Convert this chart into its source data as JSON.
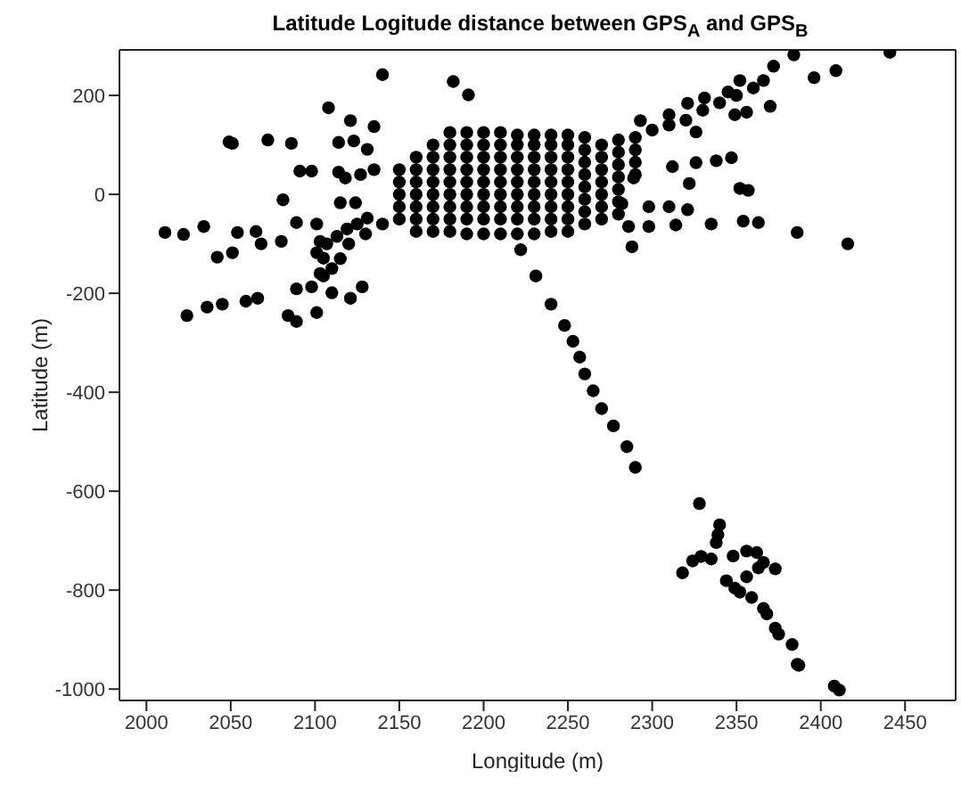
{
  "chart_data": {
    "type": "scatter",
    "title": "Latitude Logitude distance between GPS$_{A}$ and GPS$_{B}$",
    "xlabel": "Longitude (m)",
    "ylabel": "Latitude (m)",
    "xlim": [
      1984,
      2480
    ],
    "ylim": [
      -1023,
      292
    ],
    "xticks": [
      2000,
      2050,
      2100,
      2150,
      2200,
      2250,
      2300,
      2350,
      2400,
      2450
    ],
    "yticks": [
      -1000,
      -800,
      -600,
      -400,
      -200,
      0,
      200
    ],
    "grid": false,
    "legend": false,
    "marker": "circle",
    "series": [
      {
        "color": "#000000",
        "x": [
          2011,
          2022,
          2034,
          2049,
          2051,
          2072,
          2086,
          2054,
          2065,
          2042,
          2051,
          2068,
          2080,
          2024,
          2036,
          2045,
          2059,
          2066,
          2081,
          2089,
          2084,
          2089,
          2101,
          2089,
          2098,
          2091,
          2098,
          2101,
          2103,
          2105,
          2103,
          2101,
          2107,
          2113,
          2119,
          2125,
          2131,
          2110,
          2121,
          2128,
          2108,
          2121,
          2135,
          2140,
          2182,
          2191,
          2114,
          2123,
          2114,
          2118,
          2115,
          2124,
          2127,
          2135,
          2131,
          2140,
          2130,
          2120,
          2115,
          2110,
          2105,
          2150,
          2150,
          2150,
          2150,
          2150,
          2160,
          2160,
          2160,
          2160,
          2160,
          2160,
          2160,
          2170,
          2170,
          2170,
          2170,
          2170,
          2170,
          2170,
          2170,
          2180,
          2180,
          2180,
          2180,
          2180,
          2180,
          2180,
          2180,
          2180,
          2190,
          2190,
          2190,
          2190,
          2190,
          2190,
          2190,
          2190,
          2190,
          2200,
          2200,
          2200,
          2200,
          2200,
          2200,
          2200,
          2200,
          2200,
          2210,
          2210,
          2210,
          2210,
          2210,
          2210,
          2210,
          2210,
          2210,
          2220,
          2220,
          2220,
          2220,
          2220,
          2220,
          2220,
          2220,
          2220,
          2230,
          2230,
          2230,
          2230,
          2230,
          2230,
          2230,
          2230,
          2230,
          2240,
          2240,
          2240,
          2240,
          2240,
          2240,
          2240,
          2240,
          2240,
          2250,
          2250,
          2250,
          2250,
          2250,
          2250,
          2250,
          2250,
          2250,
          2260,
          2260,
          2260,
          2260,
          2260,
          2260,
          2260,
          2260,
          2270,
          2270,
          2270,
          2270,
          2270,
          2270,
          2270,
          2280,
          2280,
          2280,
          2280,
          2280,
          2280,
          2280,
          2290,
          2290,
          2290,
          2290,
          2300,
          2310,
          2320,
          2330,
          2340,
          2350,
          2360,
          2372,
          2384,
          2396,
          2409,
          2441,
          2352,
          2366,
          2321,
          2331,
          2345,
          2349,
          2356,
          2370,
          2293,
          2310,
          2326,
          2312,
          2326,
          2338,
          2347,
          2352,
          2357,
          2322,
          2289,
          2282,
          2298,
          2310,
          2321,
          2314,
          2335,
          2354,
          2363,
          2386,
          2416,
          2298,
          2286,
          2288,
          2222,
          2231,
          2240,
          2248,
          2253,
          2257,
          2260,
          2265,
          2270,
          2277,
          2285,
          2290,
          2328,
          2340,
          2339,
          2338,
          2318,
          2324,
          2329,
          2335,
          2348,
          2356,
          2362,
          2366,
          2363,
          2373,
          2356,
          2344,
          2349,
          2352,
          2359,
          2366,
          2368,
          2373,
          2375,
          2383,
          2386,
          2387,
          2408,
          2411
        ],
        "values": [
          -77,
          -81,
          -65,
          106,
          103,
          110,
          103,
          -77,
          -75,
          -127,
          -118,
          -100,
          -95,
          -245,
          -228,
          -222,
          -216,
          -210,
          -11,
          -57,
          -245,
          -257,
          -239,
          -191,
          -187,
          47,
          47,
          -60,
          -95,
          -129,
          -160,
          -118,
          -100,
          -85,
          -70,
          -60,
          -48,
          -199,
          -210,
          -187,
          175,
          149,
          137,
          242,
          228,
          201,
          105,
          108,
          45,
          33,
          -17,
          -17,
          40,
          50,
          91,
          -60,
          -80,
          -100,
          -130,
          -150,
          -165,
          -50,
          -25,
          0,
          25,
          50,
          -75,
          -50,
          -25,
          0,
          25,
          50,
          75,
          -75,
          -50,
          -25,
          0,
          25,
          50,
          75,
          100,
          -75,
          -50,
          -25,
          0,
          25,
          50,
          75,
          100,
          125,
          -80,
          -50,
          -25,
          0,
          25,
          50,
          75,
          100,
          125,
          -80,
          -50,
          -25,
          0,
          25,
          50,
          75,
          100,
          125,
          -80,
          -50,
          -25,
          0,
          25,
          50,
          75,
          100,
          125,
          -80,
          -50,
          -25,
          0,
          25,
          50,
          75,
          100,
          120,
          -80,
          -50,
          -25,
          0,
          25,
          50,
          75,
          100,
          120,
          -75,
          -50,
          -25,
          0,
          25,
          50,
          75,
          100,
          120,
          -75,
          -50,
          -25,
          0,
          25,
          50,
          75,
          100,
          120,
          -60,
          -35,
          -10,
          15,
          40,
          65,
          90,
          115,
          -50,
          -25,
          0,
          25,
          50,
          75,
          100,
          -40,
          -15,
          10,
          35,
          60,
          85,
          110,
          40,
          65,
          90,
          115,
          130,
          140,
          150,
          170,
          185,
          200,
          215,
          259,
          282,
          236,
          250,
          287,
          230,
          230,
          184,
          195,
          207,
          161,
          166,
          178,
          149,
          161,
          126,
          56,
          64,
          68,
          74,
          12,
          8,
          22,
          33,
          -19,
          -25,
          -25,
          -31,
          -62,
          -60,
          -54,
          -57,
          -77,
          -100,
          -65,
          -65,
          -106,
          -112,
          -165,
          -222,
          -265,
          -297,
          -329,
          -363,
          -397,
          -433,
          -468,
          -510,
          -552,
          -625,
          -668,
          -688,
          -704,
          -765,
          -741,
          -732,
          -737,
          -731,
          -721,
          -724,
          -744,
          -755,
          -757,
          -773,
          -781,
          -796,
          -804,
          -815,
          -837,
          -848,
          -877,
          -889,
          -910,
          -950,
          -952,
          -994,
          -1002
        ]
      }
    ]
  }
}
